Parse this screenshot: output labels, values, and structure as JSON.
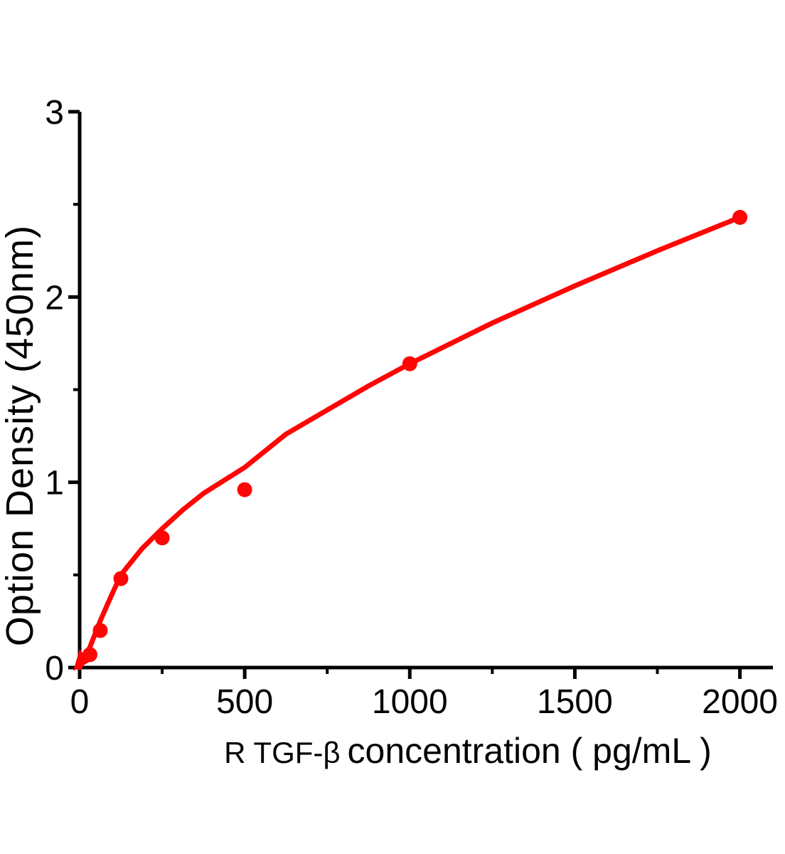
{
  "figure": {
    "background_color": "#ffffff"
  },
  "chart_data": {
    "type": "scatter",
    "title": "",
    "xlabel_prefix": "R TGF-β",
    "xlabel_main": "concentration ( pg/mL )",
    "ylabel": "Option Density (450nm)",
    "xlim": [
      0,
      2100
    ],
    "ylim": [
      0,
      3
    ],
    "x_ticks": [
      0,
      500,
      1000,
      1500,
      2000
    ],
    "x_minor_ticks": [
      250,
      750,
      1250,
      1750
    ],
    "y_ticks": [
      0,
      1,
      2,
      3
    ],
    "y_minor_ticks": [
      0.5,
      1.5,
      2.5
    ],
    "grid": false,
    "legend": "none",
    "axis_color": "#000000",
    "curve_color": "#ff0505",
    "series": [
      {
        "name": "standard-points",
        "type": "scatter",
        "marker": "circle",
        "marker_color": "#ff0505",
        "x": [
          31.25,
          62.5,
          125,
          250,
          500,
          1000,
          2000
        ],
        "y": [
          0.07,
          0.2,
          0.48,
          0.7,
          0.96,
          1.64,
          2.43
        ]
      },
      {
        "name": "fitted-curve",
        "type": "line",
        "line_color": "#ff0505",
        "points": [
          [
            0,
            0
          ],
          [
            31,
            0.11
          ],
          [
            62,
            0.25
          ],
          [
            94,
            0.38
          ],
          [
            125,
            0.5
          ],
          [
            188,
            0.64
          ],
          [
            250,
            0.75
          ],
          [
            312,
            0.85
          ],
          [
            375,
            0.94
          ],
          [
            500,
            1.08
          ],
          [
            625,
            1.26
          ],
          [
            750,
            1.39
          ],
          [
            875,
            1.52
          ],
          [
            1000,
            1.64
          ],
          [
            1250,
            1.86
          ],
          [
            1500,
            2.06
          ],
          [
            1750,
            2.25
          ],
          [
            2000,
            2.43
          ]
        ]
      }
    ]
  }
}
